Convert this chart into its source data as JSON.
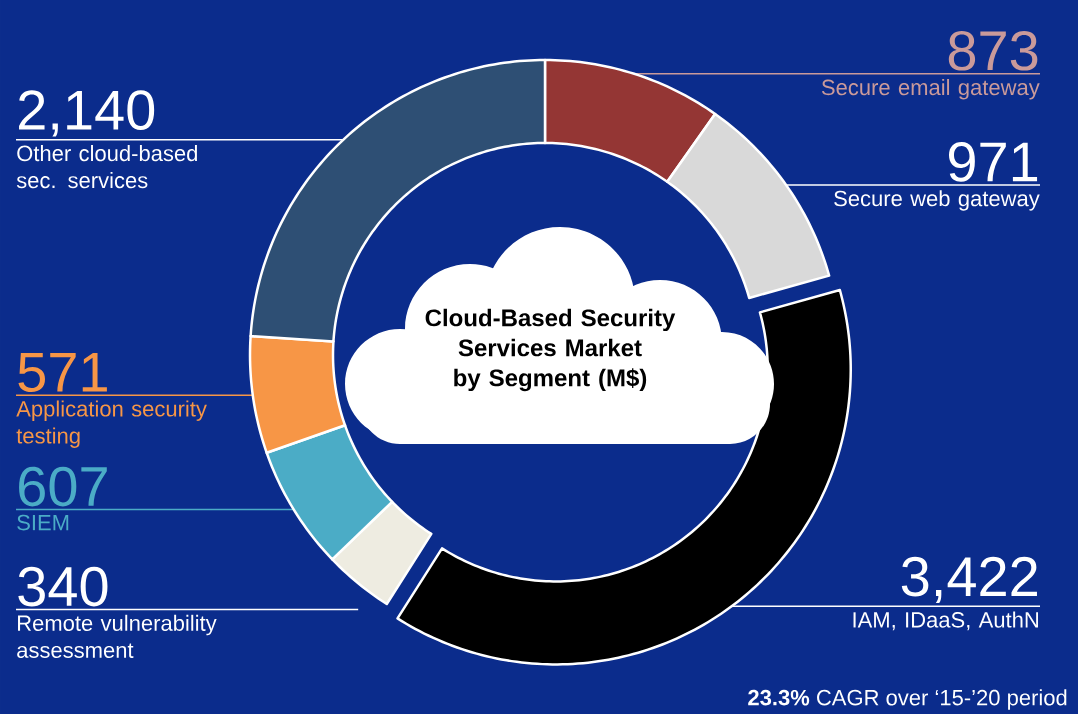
{
  "chart_data": {
    "type": "donut",
    "title": "Cloud-Based Security Services Market by Segment (M$)",
    "categories": [
      "Secure email gateway",
      "Secure web gateway",
      "IAM, IDaaS, AuthN",
      "Remote vulnerability assessment",
      "SIEM",
      "Application security testing",
      "Other cloud-based sec. services"
    ],
    "values": [
      873,
      971,
      3422,
      340,
      607,
      571,
      2140
    ],
    "value_labels": [
      "873",
      "971",
      "3,422",
      "340",
      "607",
      "571",
      "2,140"
    ],
    "colors": [
      "#943634",
      "#d9d9d9",
      "#000000",
      "#eeece1",
      "#4bacc6",
      "#f79646",
      "#2e4f74"
    ],
    "annotations": [
      "**23.3%** CAGR over ‘15-’20 period"
    ]
  }
}
